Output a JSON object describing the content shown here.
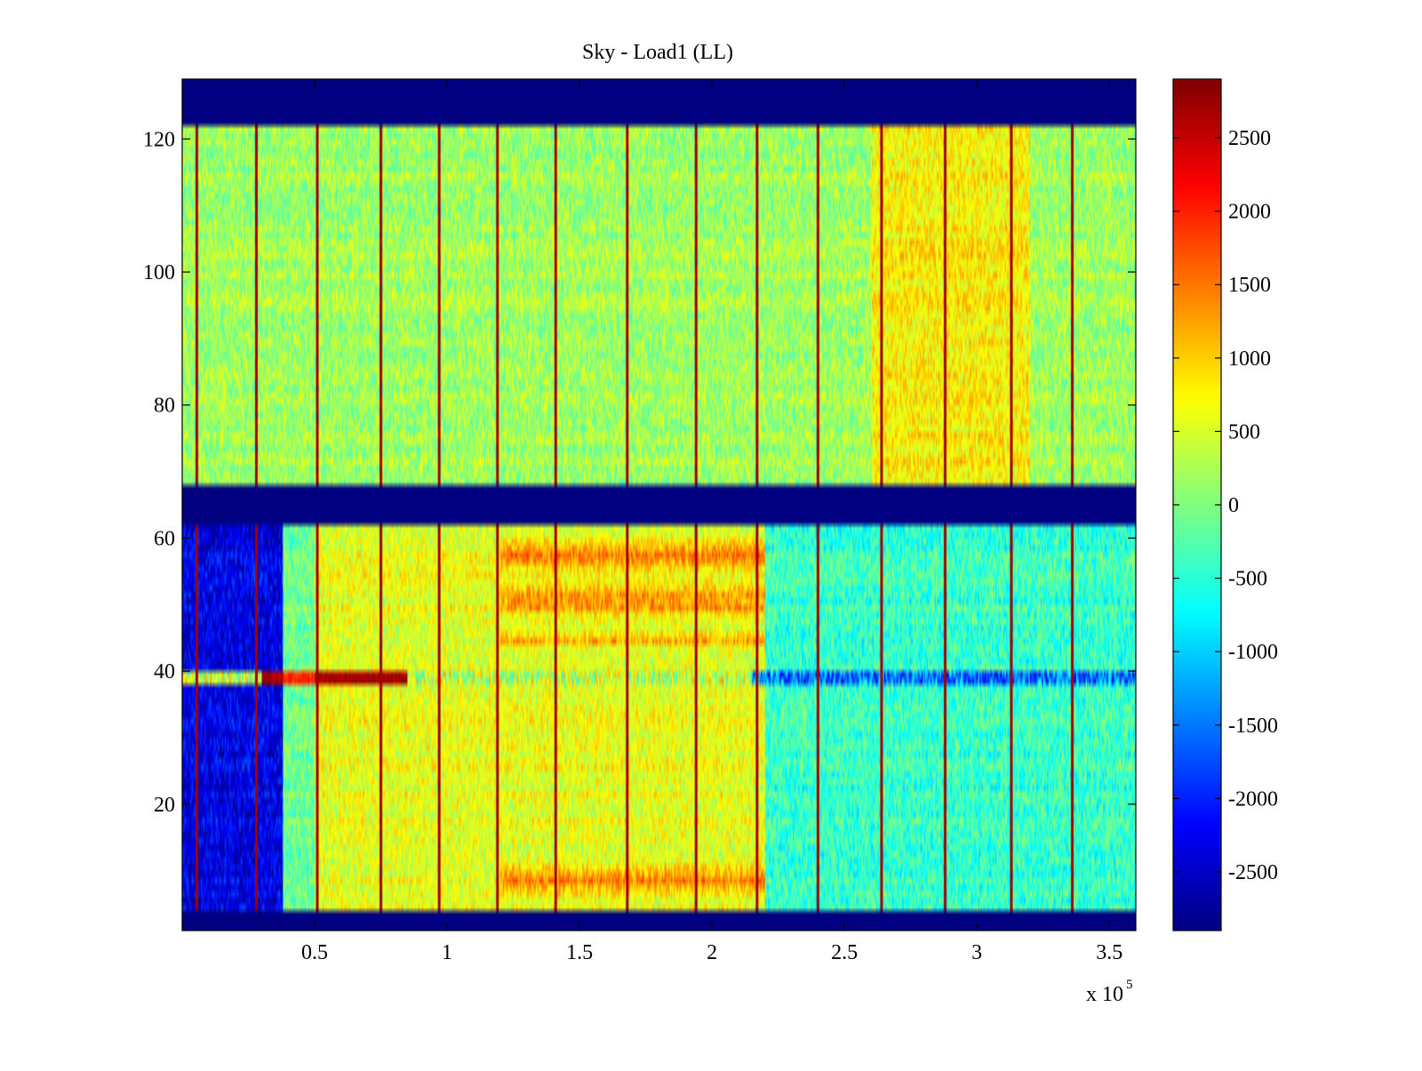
{
  "chart_data": {
    "type": "heatmap",
    "title": "Sky - Load1 (LL)",
    "xlabel": "",
    "ylabel": "",
    "x_multiplier_label": "x 10",
    "x_multiplier_exponent": "5",
    "xlim": [
      0,
      3.6
    ],
    "ylim": [
      1,
      129
    ],
    "x_ticks": [
      0.5,
      1,
      1.5,
      2,
      2.5,
      3,
      3.5
    ],
    "x_tick_labels": [
      "0.5",
      "1",
      "1.5",
      "2",
      "2.5",
      "3",
      "3.5"
    ],
    "y_ticks": [
      20,
      40,
      60,
      80,
      100,
      120
    ],
    "y_tick_labels": [
      "20",
      "40",
      "60",
      "80",
      "100",
      "120"
    ],
    "colorbar": {
      "colormap": "jet",
      "clim": [
        -2900,
        2900
      ],
      "ticks": [
        2500,
        2000,
        1500,
        1000,
        500,
        0,
        -500,
        -1000,
        -1500,
        -2000,
        -2500
      ],
      "tick_labels": [
        "2500",
        "2000",
        "1500",
        "1000",
        "500",
        "0",
        "-500",
        "-1000",
        "-1500",
        "-2000",
        "-2500"
      ]
    },
    "masked_rows": [
      {
        "from": 122,
        "to": 129,
        "value": -2900
      },
      {
        "from": 62,
        "to": 68,
        "value": -2900
      },
      {
        "from": 1,
        "to": 4,
        "value": -2900
      }
    ],
    "vertical_spikes_x": [
      0.055,
      0.28,
      0.51,
      0.75,
      0.97,
      1.19,
      1.41,
      1.68,
      1.94,
      2.17,
      2.4,
      2.64,
      2.88,
      3.13,
      3.36
    ],
    "row_40_anomaly": {
      "row": 39,
      "hot_segment_x": [
        0.3,
        0.85
      ],
      "hot_value": 2600
    },
    "regions": [
      {
        "name": "upper-band",
        "rows": [
          68,
          122
        ],
        "mean_value": 200,
        "warm_x_range": [
          2.6,
          3.2
        ],
        "warm_value": 800
      },
      {
        "name": "lower-band-cold",
        "rows": [
          4,
          62
        ],
        "x_range": [
          0,
          0.38
        ],
        "mean_value": -2300
      },
      {
        "name": "lower-band-warm-top",
        "rows": [
          44,
          62
        ],
        "x_range": [
          1.2,
          2.2
        ],
        "mean_value": 1400
      },
      {
        "name": "lower-band-warm-bottom",
        "rows": [
          6,
          12
        ],
        "x_range": [
          1.2,
          2.2
        ],
        "mean_value": 1400
      },
      {
        "name": "lower-band-right",
        "rows": [
          4,
          62
        ],
        "x_range": [
          2.2,
          3.6
        ],
        "mean_value": -400
      }
    ]
  }
}
